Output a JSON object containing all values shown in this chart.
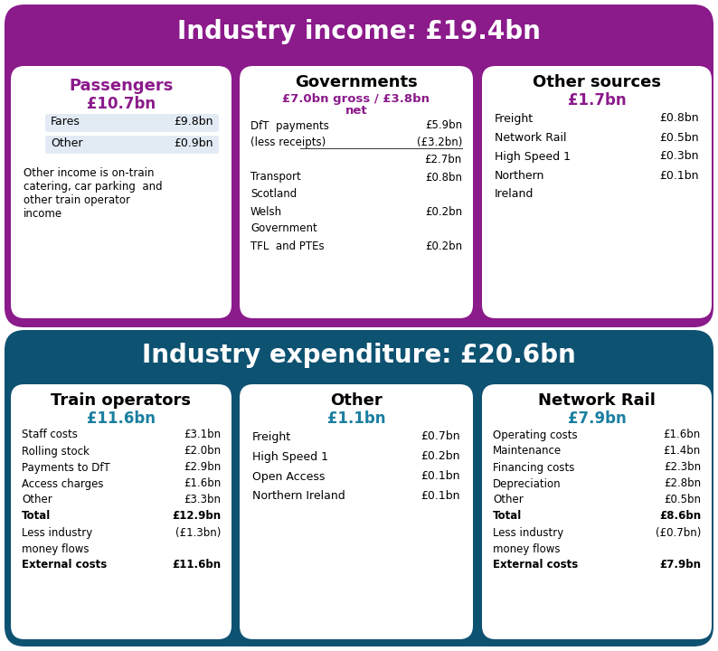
{
  "income_title": "Industry income: £19.4bn",
  "expenditure_title": "Industry expenditure: £20.6bn",
  "income_bg": "#8B1A8B",
  "expenditure_bg": "#0E5272",
  "income_purple": "#8B1A8B",
  "teal_subtitle": "#1A7FA0",
  "passengers_title": "Passengers",
  "passengers_subtitle": "£10.7bn",
  "passengers_rows": [
    [
      "Fares",
      "£9.8bn"
    ],
    [
      "Other",
      "£0.9bn"
    ]
  ],
  "passengers_note": "Other income is on-train\ncatering, car parking  and\nother train operator\nincome",
  "governments_title": "Governments",
  "gov_sub1": "£7.0bn gross / £3.8bn",
  "gov_sub2": "net",
  "governments_rows": [
    [
      "DfT  payments",
      "£5.9bn",
      false
    ],
    [
      "(less receipts)",
      "(£3.2bn)",
      false
    ],
    [
      "",
      "£2.7bn",
      true
    ],
    [
      "Transport",
      "£0.8bn",
      false
    ],
    [
      "Scotland",
      "",
      false
    ],
    [
      "Welsh",
      "£0.2bn",
      false
    ],
    [
      "Government",
      "",
      false
    ],
    [
      "TFL  and PTEs",
      "£0.2bn",
      false
    ]
  ],
  "other_sources_title": "Other sources",
  "other_sources_subtitle": "£1.7bn",
  "other_sources_rows": [
    [
      "Freight",
      "£0.8bn"
    ],
    [
      "Network Rail",
      "£0.5bn"
    ],
    [
      "High Speed 1",
      "£0.3bn"
    ],
    [
      "Northern",
      "£0.1bn"
    ],
    [
      "Ireland",
      ""
    ]
  ],
  "train_title": "Train operators",
  "train_subtitle": "£11.6bn",
  "train_rows": [
    [
      "Staff costs",
      "£3.1bn",
      false
    ],
    [
      "Rolling stock",
      "£2.0bn",
      false
    ],
    [
      "Payments to DfT",
      "£2.9bn",
      false
    ],
    [
      "Access charges",
      "£1.6bn",
      false
    ],
    [
      "Other",
      "£3.3bn",
      false
    ],
    [
      "Total",
      "£12.9bn",
      true
    ],
    [
      "Less industry",
      "(£1.3bn)",
      false
    ],
    [
      "money flows",
      "",
      false
    ],
    [
      "External costs",
      "£11.6bn",
      true
    ]
  ],
  "other_exp_title": "Other",
  "other_exp_subtitle": "£1.1bn",
  "other_exp_rows": [
    [
      "Freight",
      "£0.7bn"
    ],
    [
      "High Speed 1",
      "£0.2bn"
    ],
    [
      "Open Access",
      "£0.1bn"
    ],
    [
      "Northern Ireland",
      "£0.1bn"
    ]
  ],
  "network_title": "Network Rail",
  "network_subtitle": "£7.9bn",
  "network_rows": [
    [
      "Operating costs",
      "£1.6bn",
      false
    ],
    [
      "Maintenance",
      "£1.4bn",
      false
    ],
    [
      "Financing costs",
      "£2.3bn",
      false
    ],
    [
      "Depreciation",
      "£2.8bn",
      false
    ],
    [
      "Other",
      "£0.5bn",
      false
    ],
    [
      "Total",
      "£8.6bn",
      true
    ],
    [
      "Less industry",
      "(£0.7bn)",
      false
    ],
    [
      "money flows",
      "",
      false
    ],
    [
      "External costs",
      "£7.9bn",
      true
    ]
  ]
}
